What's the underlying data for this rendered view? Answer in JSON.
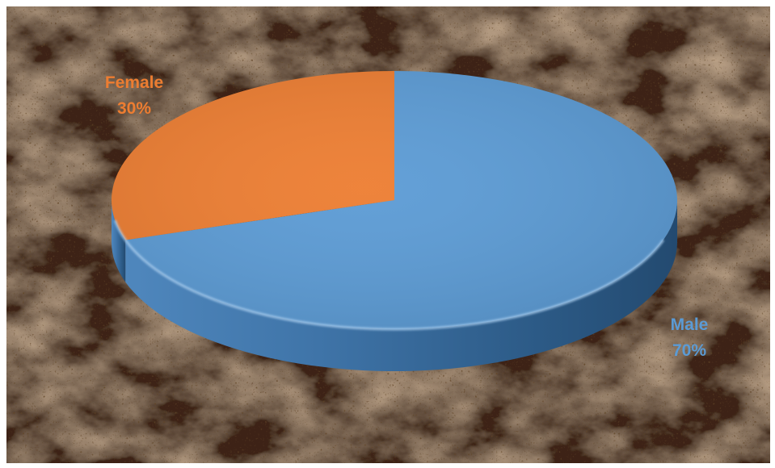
{
  "chart_data": {
    "type": "pie",
    "categories": [
      "Male",
      "Female"
    ],
    "values": [
      70,
      30
    ],
    "title": "",
    "legend": "none",
    "colors": {
      "Male": "#5b9bd5",
      "Female": "#ed7d31"
    },
    "labels": [
      {
        "category": "Male",
        "text": "Male",
        "percent": "70%"
      },
      {
        "category": "Female",
        "text": "Female",
        "percent": "30%"
      }
    ]
  },
  "background": {
    "style": "brown marble texture",
    "base_color": "#3d2414"
  }
}
